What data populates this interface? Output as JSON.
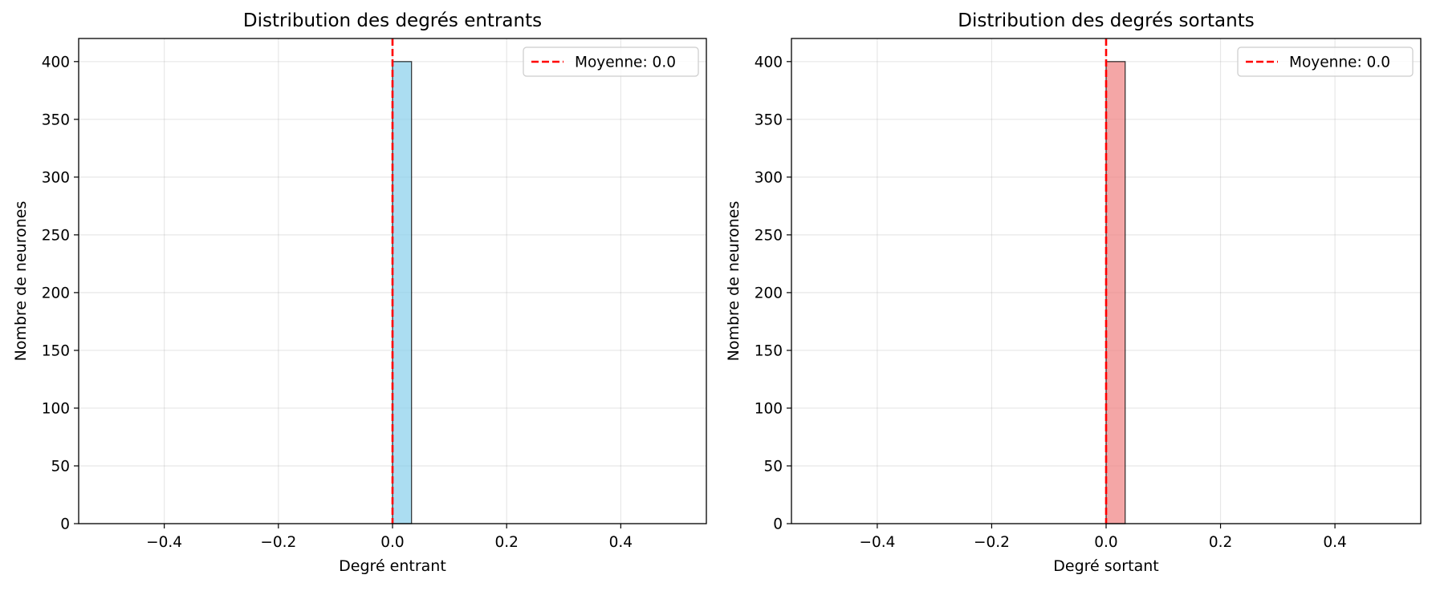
{
  "chart_data": [
    {
      "type": "bar",
      "title": "Distribution des degrés entrants",
      "xlabel": "Degré entrant",
      "ylabel": "Nombre de neurones",
      "xlim": [
        -0.55,
        0.55
      ],
      "ylim": [
        0,
        420
      ],
      "xticks": [
        -0.4,
        -0.2,
        0.0,
        0.2,
        0.4
      ],
      "xtick_labels": [
        "−0.4",
        "−0.2",
        "0.0",
        "0.2",
        "0.4"
      ],
      "yticks": [
        0,
        50,
        100,
        150,
        200,
        250,
        300,
        350,
        400
      ],
      "ytick_labels": [
        "0",
        "50",
        "100",
        "150",
        "200",
        "250",
        "300",
        "350",
        "400"
      ],
      "grid": true,
      "bins": [
        {
          "x0": 0.0,
          "x1": 0.0333,
          "count": 400
        }
      ],
      "bar_color": "#87ceeb",
      "mean_line": {
        "x": 0.0,
        "label": "Moyenne: 0.0",
        "color": "#ff0000"
      },
      "legend_placement": "top-right"
    },
    {
      "type": "bar",
      "title": "Distribution des degrés sortants",
      "xlabel": "Degré sortant",
      "ylabel": "Nombre de neurones",
      "xlim": [
        -0.55,
        0.55
      ],
      "ylim": [
        0,
        420
      ],
      "xticks": [
        -0.4,
        -0.2,
        0.0,
        0.2,
        0.4
      ],
      "xtick_labels": [
        "−0.4",
        "−0.2",
        "0.0",
        "0.2",
        "0.4"
      ],
      "yticks": [
        0,
        50,
        100,
        150,
        200,
        250,
        300,
        350,
        400
      ],
      "ytick_labels": [
        "0",
        "50",
        "100",
        "150",
        "200",
        "250",
        "300",
        "350",
        "400"
      ],
      "grid": true,
      "bins": [
        {
          "x0": 0.0,
          "x1": 0.0333,
          "count": 400
        }
      ],
      "bar_color": "#f08080",
      "mean_line": {
        "x": 0.0,
        "label": "Moyenne: 0.0",
        "color": "#ff0000"
      },
      "legend_placement": "top-right"
    }
  ]
}
